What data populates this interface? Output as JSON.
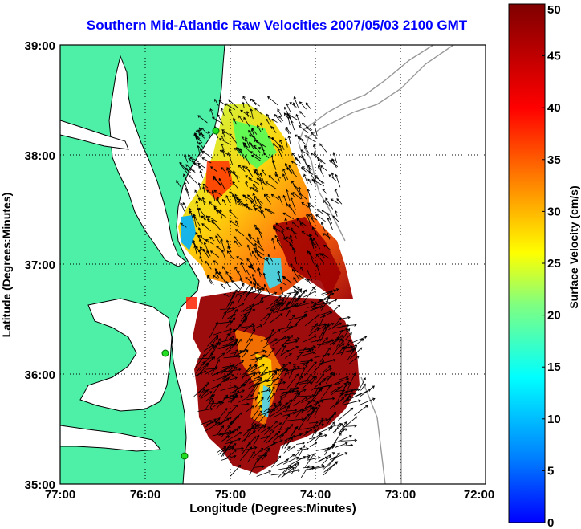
{
  "title": "Southern Mid-Atlantic Raw Velocities 2007/05/03 2100 GMT",
  "x_axis": {
    "label": "Longitude (Degrees:Minutes)",
    "ticks": [
      "77:00",
      "76:00",
      "75:00",
      "74:00",
      "73:00",
      "72:00"
    ]
  },
  "y_axis": {
    "label": "Latitude (Degrees:Minutes)",
    "ticks": [
      "39:00",
      "38:00",
      "37:00",
      "36:00",
      "35:00"
    ]
  },
  "colorbar": {
    "label": "Surface Velocity (cm/s)",
    "ticks": [
      "50",
      "45",
      "40",
      "35",
      "30",
      "25",
      "20",
      "15",
      "10",
      "5",
      "0"
    ],
    "range": [
      0,
      50
    ],
    "colormap": "jet"
  },
  "colors": {
    "land": "#4ef0a8",
    "water": "#ffffff",
    "bathymetry": "#999999",
    "grid": "#000000",
    "title": "#0000ff",
    "station": "#22dd22"
  }
}
